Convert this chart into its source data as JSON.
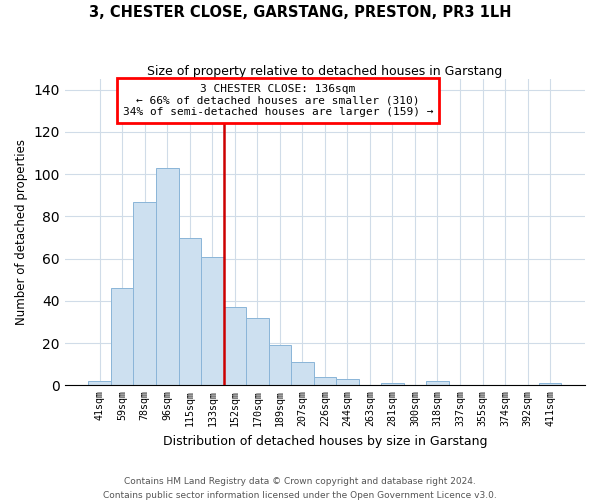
{
  "title": "3, CHESTER CLOSE, GARSTANG, PRESTON, PR3 1LH",
  "subtitle": "Size of property relative to detached houses in Garstang",
  "xlabel": "Distribution of detached houses by size in Garstang",
  "ylabel": "Number of detached properties",
  "bin_labels": [
    "41sqm",
    "59sqm",
    "78sqm",
    "96sqm",
    "115sqm",
    "133sqm",
    "152sqm",
    "170sqm",
    "189sqm",
    "207sqm",
    "226sqm",
    "244sqm",
    "263sqm",
    "281sqm",
    "300sqm",
    "318sqm",
    "337sqm",
    "355sqm",
    "374sqm",
    "392sqm",
    "411sqm"
  ],
  "bar_heights": [
    2,
    46,
    87,
    103,
    70,
    61,
    37,
    32,
    19,
    11,
    4,
    3,
    0,
    1,
    0,
    2,
    0,
    0,
    0,
    0,
    1
  ],
  "bar_color": "#cde0f0",
  "bar_edge_color": "#8ab5d8",
  "vline_color": "#cc0000",
  "annotation_title": "3 CHESTER CLOSE: 136sqm",
  "annotation_line1": "← 66% of detached houses are smaller (310)",
  "annotation_line2": "34% of semi-detached houses are larger (159) →",
  "ylim": [
    0,
    145
  ],
  "yticks": [
    0,
    20,
    40,
    60,
    80,
    100,
    120,
    140
  ],
  "footer1": "Contains HM Land Registry data © Crown copyright and database right 2024.",
  "footer2": "Contains public sector information licensed under the Open Government Licence v3.0."
}
